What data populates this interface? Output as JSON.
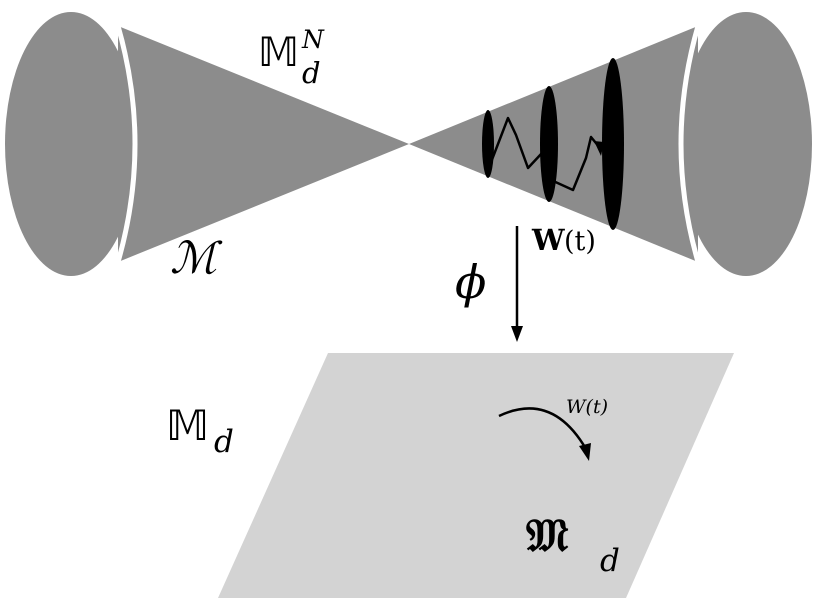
{
  "labels": {
    "top_bb": "𝕄",
    "top_sup": "N",
    "top_sub": "d",
    "cone_script": "ℳ",
    "brownian_bold": "W",
    "brownian_paren": "(t)",
    "map_symbol": "ϕ",
    "plane_bb": "𝕄",
    "plane_sub": "d",
    "plane_W": "W(t)",
    "frak": "𝔐",
    "frak_sub": "d"
  },
  "colors": {
    "cone": "#8c8c8c",
    "plane": "#d3d3d3",
    "ink": "#000000",
    "gap": "#ffffff"
  }
}
